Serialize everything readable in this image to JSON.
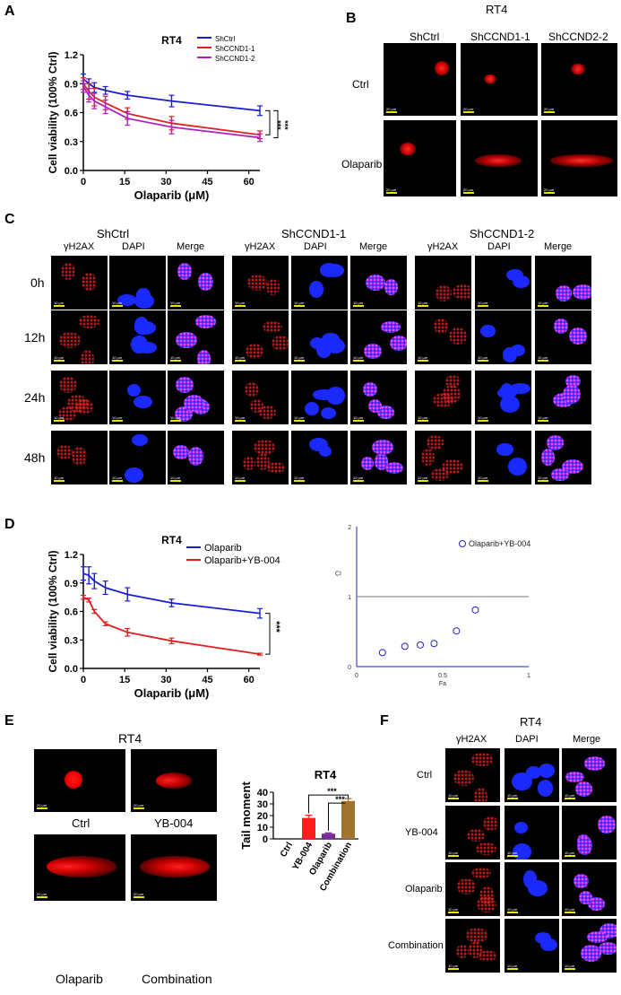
{
  "panels": {
    "A": {
      "label": "A",
      "chart_data": {
        "type": "line",
        "title": "RT4",
        "xlabel": "Olaparib (μM)",
        "ylabel": "Cell viability (100% Ctrl)",
        "xlim": [
          0,
          64
        ],
        "ylim": [
          0,
          1.2
        ],
        "xticks": [
          "0",
          "15",
          "30",
          "45",
          "60"
        ],
        "yticks": [
          "0.0",
          "0.3",
          "0.6",
          "0.9",
          "1.2"
        ],
        "x": [
          0,
          2,
          4,
          8,
          16,
          32,
          64
        ],
        "series": [
          {
            "name": "ShCtrl",
            "color": "#1c1cd6",
            "values": [
              0.95,
              0.9,
              0.86,
              0.83,
              0.78,
              0.72,
              0.62
            ],
            "err": [
              0.05,
              0.05,
              0.05,
              0.04,
              0.04,
              0.06,
              0.05
            ]
          },
          {
            "name": "ShCCND1-1",
            "color": "#e02020",
            "values": [
              0.9,
              0.82,
              0.76,
              0.7,
              0.59,
              0.49,
              0.37
            ],
            "err": [
              0.06,
              0.08,
              0.09,
              0.07,
              0.06,
              0.07,
              0.04
            ]
          },
          {
            "name": "ShCCND1-2",
            "color": "#b020c0",
            "values": [
              0.87,
              0.78,
              0.72,
              0.66,
              0.54,
              0.45,
              0.34
            ],
            "err": [
              0.06,
              0.07,
              0.08,
              0.07,
              0.07,
              0.07,
              0.04
            ]
          }
        ],
        "annotations": [
          "***",
          "***"
        ],
        "legend": "top-right"
      }
    },
    "B": {
      "label": "B",
      "title": "RT4",
      "columns": [
        "ShCtrl",
        "ShCCND1-1",
        "ShCCND2-2"
      ],
      "rows": [
        "Ctrl",
        "Olaparib"
      ],
      "scale": "20 μm"
    },
    "C": {
      "label": "C",
      "groups": [
        "ShCtrl",
        "ShCCND1-1",
        "ShCCND1-2"
      ],
      "channels": [
        "γH2AX",
        "DAPI",
        "Merge"
      ],
      "rows": [
        "0h",
        "12h",
        "24h",
        "48h"
      ],
      "scale": "10 μm"
    },
    "D": {
      "label": "D",
      "chart_data": [
        {
          "type": "line",
          "title": "RT4",
          "xlabel": "Olaparib (μM)",
          "ylabel": "Cell viability (100% Ctrl)",
          "xlim": [
            0,
            64
          ],
          "ylim": [
            0,
            1.2
          ],
          "xticks": [
            "0",
            "15",
            "30",
            "45",
            "60"
          ],
          "yticks": [
            "0.0",
            "0.3",
            "0.6",
            "0.9",
            "1.2"
          ],
          "x": [
            0,
            2,
            4,
            8,
            16,
            32,
            64
          ],
          "series": [
            {
              "name": "Olaparib",
              "color": "#1c1cd6",
              "values": [
                1.0,
                0.98,
                0.92,
                0.85,
                0.78,
                0.69,
                0.58
              ],
              "err": [
                0.07,
                0.09,
                0.08,
                0.07,
                0.07,
                0.04,
                0.05
              ]
            },
            {
              "name": "Olaparib+YB-004",
              "color": "#e02020",
              "values": [
                0.75,
                0.72,
                0.6,
                0.47,
                0.38,
                0.29,
                0.15
              ],
              "err": [
                0.02,
                0.02,
                0.02,
                0.02,
                0.04,
                0.03,
                0.01
              ]
            }
          ],
          "annotations": [
            "***"
          ],
          "legend": "top-right"
        },
        {
          "type": "scatter",
          "series_label": "Olaparib+YB-004",
          "xlabel": "Fa",
          "ylabel": "CI",
          "xlim": [
            0,
            1
          ],
          "ylim": [
            0,
            2
          ],
          "xticks": [
            "0",
            "0.5",
            "1"
          ],
          "yticks": [
            "0",
            "1",
            "2"
          ],
          "reference_line_y": 1,
          "points": [
            {
              "x": 0.15,
              "y": 0.2
            },
            {
              "x": 0.28,
              "y": 0.29
            },
            {
              "x": 0.37,
              "y": 0.31
            },
            {
              "x": 0.45,
              "y": 0.33
            },
            {
              "x": 0.58,
              "y": 0.51
            },
            {
              "x": 0.69,
              "y": 0.81
            }
          ],
          "marker_color": "#2222cc"
        }
      ]
    },
    "E": {
      "label": "E",
      "title": "RT4",
      "images": [
        "Ctrl",
        "YB-004",
        "Olaparib",
        "Combination"
      ],
      "scale": "20 μm",
      "chart_data": {
        "type": "bar",
        "title": "RT4",
        "ylabel": "Tail moment",
        "categories": [
          "Ctrl",
          "YB-004",
          "Olaparib",
          "Combination"
        ],
        "values": [
          0,
          18,
          4.5,
          32.5
        ],
        "err": [
          0,
          2.2,
          0.6,
          2.0
        ],
        "colors": [
          "#e8e8e8",
          "#ff1c1c",
          "#7a2a9a",
          "#a0742c"
        ],
        "ylim": [
          0,
          40
        ],
        "yticks": [
          "0",
          "10",
          "20",
          "30",
          "40"
        ],
        "annotations": [
          "***",
          "***"
        ]
      }
    },
    "F": {
      "label": "F",
      "title": "RT4",
      "channels": [
        "γH2AX",
        "DAPI",
        "Merge"
      ],
      "rows": [
        "Ctrl",
        "YB-004",
        "Olaparib",
        "Combination"
      ],
      "scale": "10 μm"
    }
  }
}
